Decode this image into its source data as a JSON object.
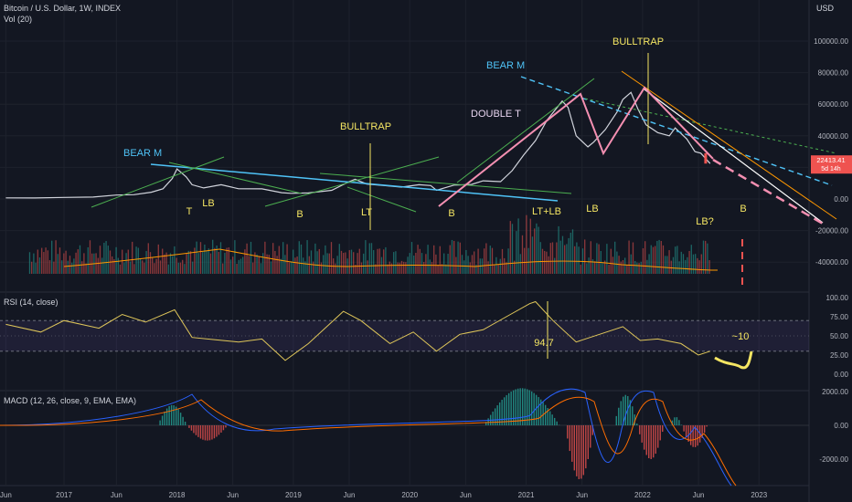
{
  "chart_data": {
    "type": "line",
    "title": "Bitcoin / U.S. Dollar, 1W, INDEX",
    "volume_label": "Vol (20)",
    "rsi_label": "RSI (14, close)",
    "macd_label": "MACD (12, 26, close, 9, EMA, EMA)",
    "price_axis_unit": "USD",
    "price_ticks": [
      "100000.00",
      "80000.00",
      "60000.00",
      "40000.00",
      "20000.00",
      "0.00",
      "-20000.00",
      "-40000.00"
    ],
    "rsi_ticks": [
      "100.00",
      "75.00",
      "50.00",
      "25.00",
      "0.00"
    ],
    "macd_ticks": [
      "2000.00",
      "0.00",
      "-2000.00"
    ],
    "x_ticks": [
      "Jun",
      "2017",
      "Jun",
      "2018",
      "Jun",
      "2019",
      "Jun",
      "2020",
      "Jun",
      "2021",
      "Jun",
      "2022",
      "Jun",
      "2023"
    ],
    "last_price": "22413.41",
    "countdown": "5d 14h",
    "price_series": {
      "x": [
        2016.5,
        2016.75,
        2017.0,
        2017.25,
        2017.45,
        2017.6,
        2017.75,
        2017.85,
        2017.93,
        2017.97,
        2018.05,
        2018.1,
        2018.2,
        2018.35,
        2018.5,
        2018.7,
        2018.87,
        2018.95,
        2019.1,
        2019.3,
        2019.45,
        2019.5,
        2019.6,
        2019.75,
        2019.9,
        2020.05,
        2020.15,
        2020.2,
        2020.35,
        2020.5,
        2020.6,
        2020.75,
        2020.85,
        2020.95,
        2021.05,
        2021.15,
        2021.28,
        2021.33,
        2021.4,
        2021.5,
        2021.55,
        2021.65,
        2021.75,
        2021.8,
        2021.87,
        2021.93,
        2022.0,
        2022.1,
        2022.2,
        2022.25,
        2022.35,
        2022.42,
        2022.47,
        2022.55
      ],
      "y": [
        700,
        650,
        1000,
        1200,
        2500,
        2700,
        4300,
        6500,
        13000,
        19000,
        14000,
        9000,
        7000,
        9000,
        6500,
        6400,
        4000,
        3600,
        3800,
        5500,
        11000,
        12500,
        9500,
        8500,
        7500,
        9000,
        8500,
        5500,
        8800,
        9200,
        11500,
        11000,
        18000,
        28000,
        37000,
        50000,
        62000,
        58000,
        40000,
        33000,
        36000,
        44000,
        55000,
        63000,
        67500,
        57000,
        47000,
        42000,
        40000,
        45000,
        38000,
        30000,
        29000,
        22413
      ]
    },
    "rsi_series": {
      "x": [
        2016.5,
        2016.8,
        2017.0,
        2017.3,
        2017.5,
        2017.7,
        2017.95,
        2018.1,
        2018.3,
        2018.5,
        2018.7,
        2018.9,
        2019.1,
        2019.4,
        2019.55,
        2019.8,
        2020.0,
        2020.2,
        2020.4,
        2020.6,
        2020.8,
        2021.0,
        2021.05,
        2021.2,
        2021.4,
        2021.6,
        2021.8,
        2021.95,
        2022.1,
        2022.3,
        2022.45,
        2022.55
      ],
      "y": [
        65,
        55,
        70,
        60,
        78,
        68,
        84,
        48,
        45,
        42,
        46,
        18,
        40,
        82,
        70,
        40,
        55,
        30,
        52,
        58,
        75,
        92,
        94.7,
        70,
        42,
        52,
        62,
        44,
        46,
        40,
        25,
        30
      ]
    },
    "annotations": {
      "bear_m_1": "BEAR M",
      "bear_m_2": "BEAR M",
      "bulltrap_1": "BULLTRAP",
      "bulltrap_2": "BULLTRAP",
      "double_t": "DOUBLE T",
      "t": "T",
      "lb_1": "LB",
      "b_1": "B",
      "lt": "LT",
      "b_2": "B",
      "lt_lb": "LT+LB",
      "lb_2": "LB",
      "lb_q": "LB?",
      "b_3": "B",
      "rsi_peak": "94.7",
      "rsi_target": "~10"
    },
    "colors": {
      "background": "#131722",
      "price_line": "#d1d4dc",
      "cyan_line": "#4fc3f7",
      "green_line": "#4caf50",
      "orange_line": "#ff9800",
      "pink_line": "#f48fb1",
      "yellow_annotation": "#f5e663",
      "red": "#ef5350",
      "green_volume": "#26a69a",
      "rsi_line": "#e0c75a",
      "macd_line": "#2962ff",
      "signal_line": "#ff6d00"
    }
  }
}
